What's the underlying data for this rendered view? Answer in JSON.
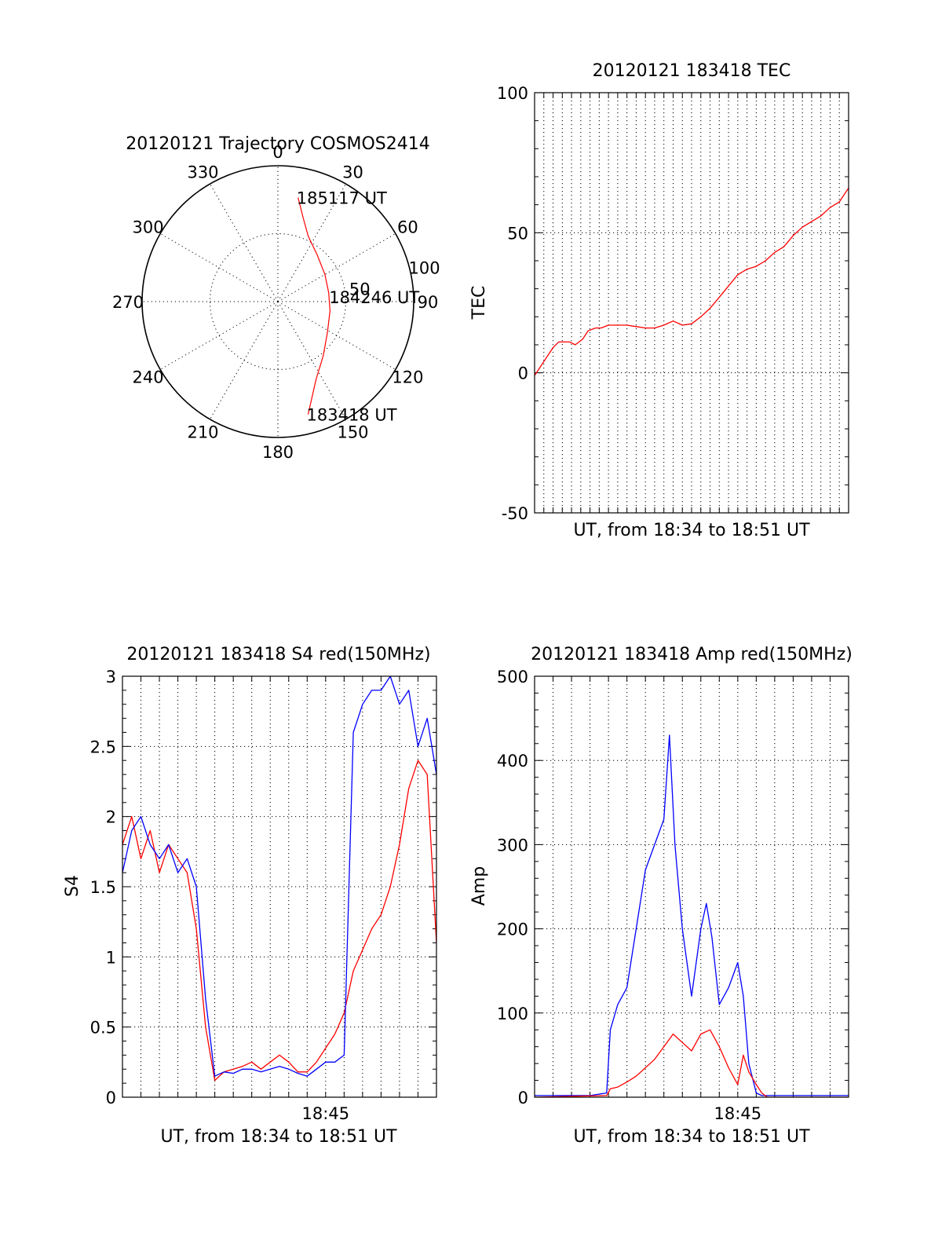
{
  "colors": {
    "red": "#ff0000",
    "blue": "#0000ff"
  },
  "chart_data": [
    {
      "type": "polar",
      "title": "20120121 Trajectory COSMOS2414",
      "azimuth_labels": [
        "0",
        "30",
        "60",
        "90",
        "120",
        "150",
        "180",
        "210",
        "240",
        "270",
        "300",
        "330"
      ],
      "radial_labels": [
        "50",
        "100"
      ],
      "radial_label_values": [
        50,
        100
      ],
      "r_max": 100,
      "series": [
        {
          "name": "trajectory",
          "color": "#ff0000",
          "points": [
            {
              "az": 11,
              "r": 78
            },
            {
              "az": 17,
              "r": 64
            },
            {
              "az": 25,
              "r": 53
            },
            {
              "az": 40,
              "r": 45
            },
            {
              "az": 60,
              "r": 40
            },
            {
              "az": 80,
              "r": 38
            },
            {
              "az": 100,
              "r": 39
            },
            {
              "az": 122,
              "r": 43
            },
            {
              "az": 140,
              "r": 52
            },
            {
              "az": 154,
              "r": 64
            },
            {
              "az": 165,
              "r": 86
            }
          ]
        }
      ],
      "annotations": [
        {
          "text": "185117 UT",
          "az": 11,
          "r": 78
        },
        {
          "text": "184246 UT",
          "az": 85,
          "r": 39
        },
        {
          "text": "183418 UT",
          "az": 165,
          "r": 86
        }
      ]
    },
    {
      "type": "line",
      "title": "20120121 183418 TEC",
      "xlabel": "UT, from 18:34 to 18:51 UT",
      "ylabel": "TEC",
      "xlim": [
        0,
        17
      ],
      "ylim": [
        -50,
        100
      ],
      "yticks": [
        -50,
        0,
        50,
        100
      ],
      "yticklabels": [
        "-50",
        "0",
        "50",
        "100"
      ],
      "x_minor_step": 0.5,
      "series": [
        {
          "name": "TEC",
          "color": "#ff0000",
          "x": [
            0,
            0.3,
            0.6,
            1.0,
            1.3,
            1.6,
            1.9,
            2.2,
            2.6,
            2.9,
            3.3,
            3.6,
            4.0,
            4.5,
            5.0,
            5.5,
            6.0,
            6.5,
            7.0,
            7.5,
            8.0,
            8.5,
            9.0,
            9.5,
            10.0,
            10.5,
            11.0,
            11.5,
            12.0,
            12.5,
            13.0,
            13.5,
            14.0,
            14.5,
            15.0,
            15.5,
            16.0,
            16.5,
            17.0
          ],
          "values": [
            -1,
            2,
            5,
            9,
            11,
            11,
            11,
            10,
            12,
            15,
            16,
            16,
            17,
            17,
            17,
            16.5,
            16,
            16,
            17,
            18.5,
            17,
            17.5,
            20,
            23,
            27,
            31,
            35,
            37,
            38,
            40,
            43,
            45,
            49,
            52,
            54,
            56,
            59,
            61,
            66
          ]
        }
      ]
    },
    {
      "type": "line",
      "title": "20120121 183418 S4 red(150MHz)",
      "xlabel": "UT, from 18:34 to 18:51 UT",
      "ylabel": "S4",
      "xlim": [
        0,
        17
      ],
      "ylim": [
        0,
        3
      ],
      "yticks": [
        0,
        0.5,
        1,
        1.5,
        2,
        2.5,
        3
      ],
      "yticklabels": [
        "0",
        "0.5",
        "1",
        "1.5",
        "2",
        "2.5",
        "3"
      ],
      "xticks": [
        11
      ],
      "xticklabels": [
        "18:45"
      ],
      "x_minor_step": 1,
      "series": [
        {
          "name": "S4 red",
          "color": "#ff0000",
          "x": [
            0,
            0.5,
            1,
            1.5,
            2,
            2.5,
            3,
            3.5,
            4,
            4.5,
            5,
            5.5,
            6,
            6.5,
            7,
            7.5,
            8,
            8.5,
            9,
            9.5,
            10,
            10.5,
            11,
            11.5,
            12,
            12.5,
            13,
            13.5,
            14,
            14.5,
            15,
            15.5,
            16,
            16.5,
            17
          ],
          "values": [
            1.8,
            2.0,
            1.7,
            1.9,
            1.6,
            1.8,
            1.7,
            1.6,
            1.2,
            0.5,
            0.12,
            0.18,
            0.2,
            0.22,
            0.25,
            0.2,
            0.25,
            0.3,
            0.25,
            0.18,
            0.18,
            0.25,
            0.35,
            0.45,
            0.6,
            0.9,
            1.05,
            1.2,
            1.3,
            1.5,
            1.8,
            2.2,
            2.4,
            2.3,
            1.1
          ]
        },
        {
          "name": "S4 blue",
          "color": "#0000ff",
          "x": [
            0,
            0.5,
            1,
            1.5,
            2,
            2.5,
            3,
            3.5,
            4,
            4.5,
            5,
            5.5,
            6,
            6.5,
            7,
            7.5,
            8,
            8.5,
            9,
            9.5,
            10,
            10.5,
            11,
            11.5,
            12,
            12.5,
            13,
            13.5,
            14,
            14.5,
            15,
            15.5,
            16,
            16.5,
            17
          ],
          "values": [
            1.6,
            1.9,
            2.0,
            1.8,
            1.7,
            1.8,
            1.6,
            1.7,
            1.5,
            0.7,
            0.15,
            0.18,
            0.17,
            0.2,
            0.2,
            0.18,
            0.2,
            0.22,
            0.2,
            0.17,
            0.15,
            0.2,
            0.25,
            0.25,
            0.3,
            2.6,
            2.8,
            2.9,
            2.9,
            3.0,
            2.8,
            2.9,
            2.5,
            2.7,
            2.3
          ]
        }
      ]
    },
    {
      "type": "line",
      "title": "20120121 183418 Amp red(150MHz)",
      "xlabel": "UT, from 18:34 to 18:51 UT",
      "ylabel": "Amp",
      "xlim": [
        0,
        17
      ],
      "ylim": [
        0,
        500
      ],
      "yticks": [
        0,
        100,
        200,
        300,
        400,
        500
      ],
      "yticklabels": [
        "0",
        "100",
        "200",
        "300",
        "400",
        "500"
      ],
      "xticks": [
        11
      ],
      "xticklabels": [
        "18:45"
      ],
      "x_minor_step": 1,
      "series": [
        {
          "name": "Amp blue",
          "color": "#0000ff",
          "x": [
            0,
            1,
            2,
            3,
            3.9,
            4.1,
            4.5,
            5.0,
            5.5,
            6.0,
            6.5,
            7.0,
            7.3,
            7.6,
            8.0,
            8.5,
            9.0,
            9.3,
            9.6,
            10.0,
            10.5,
            11.0,
            11.3,
            11.6,
            12.0,
            12.3,
            12.6,
            13.0,
            14,
            15,
            16,
            17
          ],
          "values": [
            2,
            2,
            2,
            2,
            5,
            80,
            110,
            130,
            200,
            270,
            300,
            330,
            430,
            300,
            200,
            120,
            200,
            230,
            190,
            110,
            130,
            160,
            120,
            40,
            5,
            2,
            2,
            2,
            2,
            2,
            2,
            2
          ]
        },
        {
          "name": "Amp red",
          "color": "#ff0000",
          "x": [
            0,
            3.9,
            4.1,
            4.5,
            5.0,
            5.5,
            6.0,
            6.5,
            7.0,
            7.5,
            8.0,
            8.5,
            9.0,
            9.5,
            10.0,
            10.5,
            11.0,
            11.3,
            11.6,
            12.0,
            12.3,
            12.6,
            13.0,
            17
          ],
          "values": [
            0,
            2,
            10,
            12,
            18,
            25,
            35,
            45,
            60,
            75,
            65,
            55,
            75,
            80,
            60,
            35,
            15,
            50,
            30,
            15,
            5,
            0,
            0,
            0
          ]
        }
      ]
    }
  ]
}
